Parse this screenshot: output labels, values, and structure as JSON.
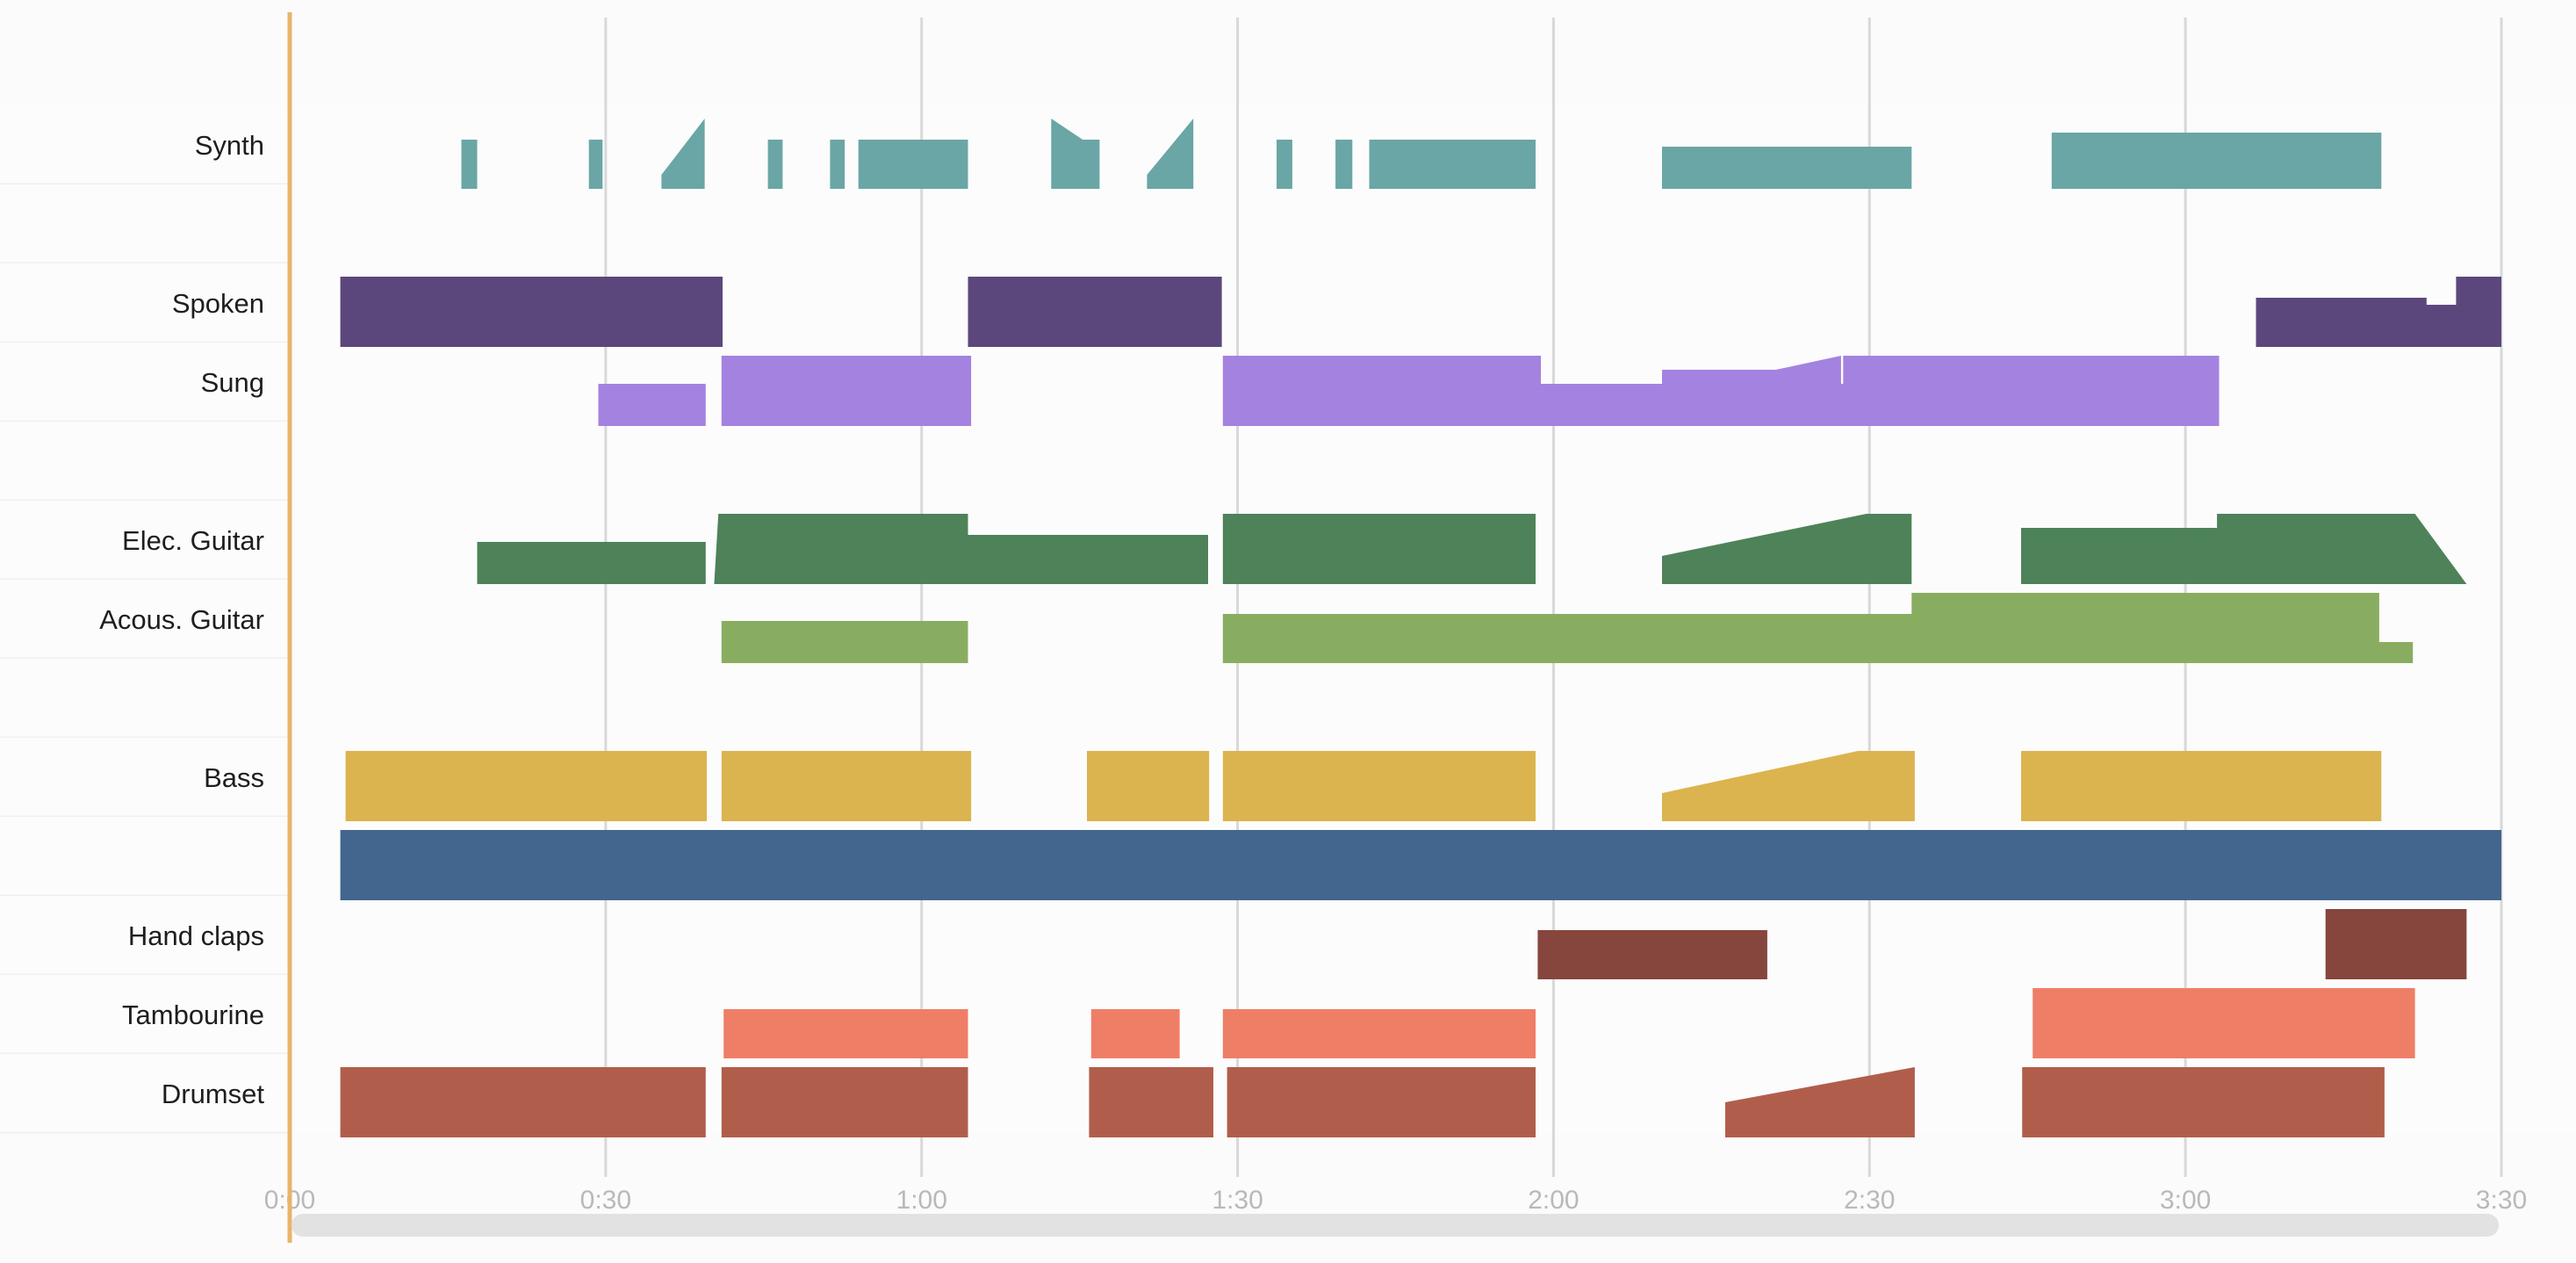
{
  "chart_data": {
    "type": "area",
    "x_unit": "seconds",
    "xlim": [
      0,
      210
    ],
    "x_ticks": [
      0,
      30,
      60,
      90,
      120,
      150,
      180,
      210
    ],
    "x_tick_labels": [
      "0:00",
      "0:30",
      "1:00",
      "1:30",
      "2:00",
      "2:30",
      "3:00",
      "3:30"
    ],
    "playhead": 0,
    "grid": true,
    "legend": "none",
    "tracks": [
      {
        "id": "synth",
        "label": "Synth",
        "color": "#6aa6a6",
        "segments": [
          [
            [
              16.3,
              0.7
            ],
            [
              17.8,
              0.7
            ]
          ],
          [
            [
              28.4,
              0.7
            ],
            [
              29.7,
              0.7
            ]
          ],
          [
            [
              35.3,
              0.2
            ],
            [
              39.4,
              1.0
            ],
            [
              39.4,
              0.2
            ]
          ],
          [
            [
              45.4,
              0.7
            ],
            [
              46.8,
              0.7
            ]
          ],
          [
            [
              51.3,
              0.7
            ],
            [
              52.7,
              0.7
            ]
          ],
          [
            [
              54.0,
              0.7
            ],
            [
              64.4,
              0.7
            ]
          ],
          [
            [
              72.3,
              1.0
            ],
            [
              75.3,
              0.7
            ],
            [
              76.9,
              0.7
            ]
          ],
          [
            [
              81.4,
              0.2
            ],
            [
              85.8,
              1.0
            ],
            [
              85.8,
              0.2
            ]
          ],
          [
            [
              93.7,
              0.7
            ],
            [
              95.2,
              0.7
            ]
          ],
          [
            [
              99.3,
              0.7
            ],
            [
              100.9,
              0.7
            ]
          ],
          [
            [
              102.5,
              0.7
            ],
            [
              118.3,
              0.7
            ]
          ],
          [
            [
              130.3,
              0.6
            ],
            [
              154.0,
              0.6
            ]
          ],
          [
            [
              167.3,
              0.8
            ],
            [
              198.6,
              0.8
            ]
          ]
        ]
      },
      {
        "id": "spoken",
        "label": "Spoken",
        "color": "#5b477c",
        "segments": [
          [
            [
              4.8,
              1.0
            ],
            [
              41.1,
              1.0
            ]
          ],
          [
            [
              64.4,
              1.0
            ],
            [
              88.5,
              1.0
            ]
          ],
          [
            [
              186.7,
              0.7
            ],
            [
              202.9,
              0.7
            ],
            [
              202.9,
              0.6
            ],
            [
              205.7,
              0.6
            ],
            [
              205.7,
              1.0
            ],
            [
              210.0,
              1.0
            ]
          ]
        ]
      },
      {
        "id": "sung",
        "label": "Sung",
        "color": "#a482e0",
        "segments": [
          [
            [
              29.3,
              0.6
            ],
            [
              39.5,
              0.6
            ]
          ],
          [
            [
              41.0,
              1.0
            ],
            [
              64.7,
              1.0
            ]
          ],
          [
            [
              88.6,
              1.0
            ],
            [
              118.8,
              1.0
            ],
            [
              118.8,
              0.6
            ],
            [
              130.3,
              0.6
            ],
            [
              130.3,
              0.8
            ],
            [
              141.1,
              0.8
            ],
            [
              147.3,
              1.0
            ],
            [
              147.3,
              0.6
            ],
            [
              147.5,
              0.6
            ],
            [
              147.5,
              1.0
            ],
            [
              183.2,
              1.0
            ]
          ]
        ]
      },
      {
        "id": "elec-guitar",
        "label": "Elec. Guitar",
        "color": "#4e8259",
        "segments": [
          [
            [
              17.8,
              0.6
            ],
            [
              39.5,
              0.6
            ]
          ],
          [
            [
              40.3,
              0.0
            ],
            [
              40.7,
              1.0
            ],
            [
              64.4,
              1.0
            ],
            [
              64.4,
              0.7
            ],
            [
              87.2,
              0.7
            ]
          ],
          [
            [
              88.6,
              1.0
            ],
            [
              118.3,
              1.0
            ]
          ],
          [
            [
              130.3,
              0.4
            ],
            [
              149.7,
              1.0
            ],
            [
              154.0,
              1.0
            ]
          ],
          [
            [
              164.4,
              0.8
            ],
            [
              183.0,
              0.8
            ],
            [
              183.0,
              1.0
            ],
            [
              201.8,
              1.0
            ],
            [
              206.7,
              0.0
            ]
          ]
        ]
      },
      {
        "id": "acous-guitar",
        "label": "Acous. Guitar",
        "color": "#89ad60",
        "segments": [
          [
            [
              41.0,
              0.6
            ],
            [
              64.4,
              0.6
            ]
          ],
          [
            [
              88.6,
              0.7
            ],
            [
              154.0,
              0.7
            ],
            [
              154.0,
              1.0
            ],
            [
              198.4,
              1.0
            ],
            [
              198.4,
              0.3
            ],
            [
              201.6,
              0.3
            ]
          ]
        ]
      },
      {
        "id": "bass",
        "label": "Bass",
        "color": "#dbb44f",
        "segments": [
          [
            [
              5.3,
              1.0
            ],
            [
              39.6,
              1.0
            ]
          ],
          [
            [
              41.0,
              1.0
            ],
            [
              64.7,
              1.0
            ]
          ],
          [
            [
              75.7,
              1.0
            ],
            [
              87.3,
              1.0
            ]
          ],
          [
            [
              88.6,
              1.0
            ],
            [
              118.3,
              1.0
            ]
          ],
          [
            [
              130.3,
              0.4
            ],
            [
              148.9,
              1.0
            ],
            [
              154.3,
              1.0
            ]
          ],
          [
            [
              164.4,
              1.0
            ],
            [
              198.6,
              1.0
            ]
          ]
        ]
      },
      {
        "id": "track-7",
        "label": "",
        "color": "#42668e",
        "segments": [
          [
            [
              4.8,
              1.0
            ],
            [
              210.0,
              1.0
            ]
          ]
        ]
      },
      {
        "id": "hand-claps",
        "label": "Hand claps",
        "color": "#86463d",
        "segments": [
          [
            [
              118.5,
              0.7
            ],
            [
              140.3,
              0.7
            ]
          ],
          [
            [
              193.3,
              1.0
            ],
            [
              206.7,
              1.0
            ]
          ]
        ]
      },
      {
        "id": "tambourine",
        "label": "Tambourine",
        "color": "#ef7e67",
        "segments": [
          [
            [
              41.2,
              0.7
            ],
            [
              64.4,
              0.7
            ]
          ],
          [
            [
              76.1,
              0.7
            ],
            [
              84.5,
              0.7
            ]
          ],
          [
            [
              88.6,
              0.7
            ],
            [
              118.3,
              0.7
            ]
          ],
          [
            [
              165.5,
              1.0
            ],
            [
              201.8,
              1.0
            ]
          ]
        ]
      },
      {
        "id": "drumset",
        "label": "Drumset",
        "color": "#b05e4b",
        "segments": [
          [
            [
              4.8,
              1.0
            ],
            [
              39.5,
              1.0
            ]
          ],
          [
            [
              41.0,
              1.0
            ],
            [
              64.4,
              1.0
            ]
          ],
          [
            [
              75.9,
              1.0
            ],
            [
              87.7,
              1.0
            ]
          ],
          [
            [
              89.0,
              1.0
            ],
            [
              118.3,
              1.0
            ]
          ],
          [
            [
              136.3,
              0.5
            ],
            [
              154.3,
              1.0
            ]
          ],
          [
            [
              164.5,
              1.0
            ],
            [
              198.9,
              1.0
            ]
          ]
        ]
      }
    ]
  }
}
